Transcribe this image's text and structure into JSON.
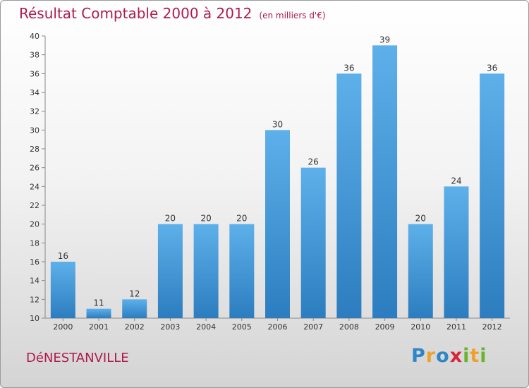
{
  "chart_data": {
    "type": "bar",
    "title": "Résultat Comptable 2000 à 2012",
    "subtitle": "(en milliers d'€)",
    "categories": [
      "2000",
      "2001",
      "2002",
      "2003",
      "2004",
      "2005",
      "2006",
      "2007",
      "2008",
      "2009",
      "2010",
      "2011",
      "2012"
    ],
    "values": [
      16,
      11,
      12,
      20,
      20,
      20,
      30,
      26,
      36,
      39,
      20,
      24,
      36
    ],
    "ylim": [
      10,
      40
    ],
    "yticks": [
      10,
      12,
      14,
      16,
      18,
      20,
      22,
      24,
      26,
      28,
      30,
      32,
      34,
      36,
      38,
      40
    ],
    "xlabel": "",
    "ylabel": "",
    "grid": false,
    "colors": {
      "bar_top": "#5eb0ea",
      "bar_bottom": "#2c7dbf",
      "title": "#b01a4a"
    }
  },
  "location": "DéNESTANVILLE",
  "brand": {
    "letters": [
      {
        "ch": "P",
        "color": "#2f86c6"
      },
      {
        "ch": "r",
        "color": "#f0a12a"
      },
      {
        "ch": "o",
        "color": "#2f86c6"
      },
      {
        "ch": "x",
        "color": "#d6253a"
      },
      {
        "ch": "i",
        "color": "#6ab42d"
      },
      {
        "ch": "t",
        "color": "#f0a12a"
      },
      {
        "ch": "i",
        "color": "#6ab42d"
      }
    ]
  }
}
